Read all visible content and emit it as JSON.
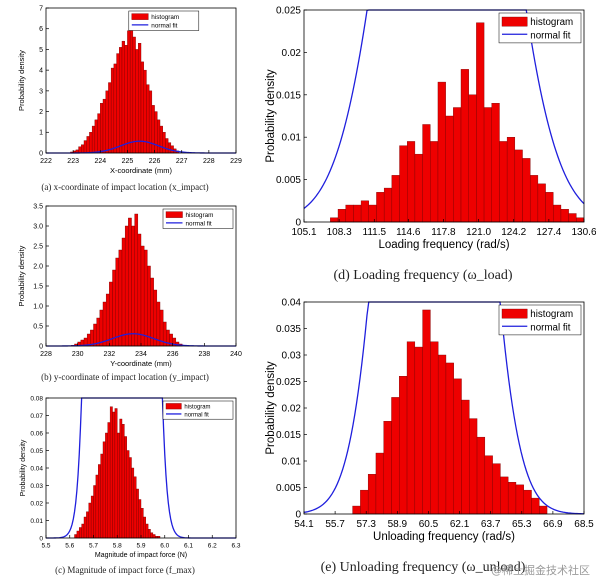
{
  "chart_data": [
    {
      "id": "a",
      "type": "bar",
      "overlay": "line",
      "xlabel": "X-coordinate (mm)",
      "ylabel": "Probability density",
      "caption": "(a) x-coordinate of impact location (x_impact)",
      "x_ticks": [
        "222",
        "223",
        "224",
        "225",
        "226",
        "227",
        "228",
        "229"
      ],
      "x_range": [
        222,
        229
      ],
      "y_ticks": [
        "0",
        "1",
        "2",
        "3",
        "4",
        "5",
        "6",
        "7"
      ],
      "y_range": [
        0,
        7
      ],
      "legend": [
        "histogram",
        "normal fit"
      ],
      "legend_position": "top-left",
      "series": [
        {
          "name": "histogram",
          "bin_start": 222.9,
          "bin_width": 0.1,
          "values": [
            0.05,
            0.1,
            0.15,
            0.3,
            0.4,
            0.6,
            0.8,
            1.0,
            1.3,
            1.6,
            1.9,
            2.4,
            2.6,
            3.0,
            3.4,
            4.1,
            4.3,
            4.8,
            5.1,
            5.4,
            5.2,
            5.9,
            6.4,
            5.6,
            5.0,
            5.3,
            4.4,
            4.0,
            3.3,
            3.0,
            2.3,
            2.0,
            1.6,
            1.3,
            1.0,
            0.7,
            0.5,
            0.35,
            0.2,
            0.1
          ]
        },
        {
          "name": "normal fit",
          "mean": 225.45,
          "sd": 0.7
        }
      ]
    },
    {
      "id": "b",
      "type": "bar",
      "overlay": "line",
      "xlabel": "Y-coordinate (mm)",
      "ylabel": "Probability density",
      "caption": "(b) y-coordinate of impact location (y_impact)",
      "x_ticks": [
        "228",
        "230",
        "232",
        "234",
        "236",
        "238",
        "240"
      ],
      "x_range": [
        228,
        240
      ],
      "y_ticks": [
        "0",
        "0.5",
        "1.0",
        "1.5",
        "2.0",
        "2.5",
        "3.0",
        "3.5"
      ],
      "y_range": [
        0,
        3.5
      ],
      "legend": [
        "histogram",
        "normal fit"
      ],
      "legend_position": "top-right",
      "series": [
        {
          "name": "histogram",
          "bin_start": 229.6,
          "bin_width": 0.2,
          "values": [
            0.02,
            0.05,
            0.1,
            0.15,
            0.2,
            0.3,
            0.4,
            0.55,
            0.7,
            0.9,
            1.1,
            1.3,
            1.6,
            1.9,
            2.2,
            2.4,
            2.7,
            3.0,
            3.2,
            3.0,
            3.3,
            2.8,
            2.5,
            2.4,
            2.0,
            1.7,
            1.4,
            1.1,
            0.9,
            0.6,
            0.4,
            0.3,
            0.2,
            0.1,
            0.05
          ]
        },
        {
          "name": "normal fit",
          "mean": 233.5,
          "sd": 1.3
        }
      ]
    },
    {
      "id": "c",
      "type": "bar",
      "overlay": "line",
      "xlabel": "Magnitude of impact force (N)",
      "ylabel": "Probability density",
      "caption": "(c) Magnitude of impact force (f_max)",
      "x_ticks": [
        "5.5",
        "5.6",
        "5.7",
        "5.8",
        "5.9",
        "6.0",
        "6.1",
        "6.2",
        "6.3"
      ],
      "x_range": [
        5.5,
        6.3
      ],
      "y_ticks": [
        "0",
        "0.01",
        "0.02",
        "0.03",
        "0.04",
        "0.05",
        "0.06",
        "0.07",
        "0.08"
      ],
      "y_range": [
        0,
        0.08
      ],
      "legend": [
        "histogram",
        "normal fit"
      ],
      "legend_position": "top-right",
      "series": [
        {
          "name": "histogram",
          "bin_start": 5.62,
          "bin_width": 0.01,
          "values": [
            0.002,
            0.004,
            0.006,
            0.008,
            0.012,
            0.015,
            0.02,
            0.024,
            0.03,
            0.036,
            0.042,
            0.048,
            0.055,
            0.06,
            0.066,
            0.075,
            0.072,
            0.074,
            0.06,
            0.068,
            0.065,
            0.058,
            0.05,
            0.046,
            0.04,
            0.035,
            0.028,
            0.022,
            0.017,
            0.012,
            0.008,
            0.005,
            0.003,
            0.002,
            0.001,
            0.001
          ]
        },
        {
          "name": "normal fit",
          "mean": 5.82,
          "sd": 0.057
        }
      ]
    },
    {
      "id": "d",
      "type": "bar",
      "overlay": "line",
      "xlabel": "Loading frequency (rad/s)",
      "ylabel": "Probability density",
      "caption": "(d) Loading frequency (ω_load)",
      "x_ticks": [
        "105.1",
        "108.3",
        "111.5",
        "114.6",
        "117.8",
        "121.0",
        "124.2",
        "127.4",
        "130.6"
      ],
      "x_range": [
        105.1,
        130.6
      ],
      "y_ticks": [
        "0",
        "0.005",
        "0.01",
        "0.015",
        "0.02",
        "0.025"
      ],
      "y_range": [
        0,
        0.025
      ],
      "legend": [
        "histogram",
        "normal fit"
      ],
      "legend_position": "top-right",
      "series": [
        {
          "name": "histogram",
          "bin_start": 107.5,
          "bin_width": 0.7,
          "values": [
            0.0005,
            0.0015,
            0.002,
            0.002,
            0.0025,
            0.002,
            0.0035,
            0.004,
            0.0055,
            0.009,
            0.0095,
            0.008,
            0.0115,
            0.0095,
            0.0165,
            0.0125,
            0.0135,
            0.018,
            0.015,
            0.0235,
            0.0135,
            0.014,
            0.0095,
            0.01,
            0.0085,
            0.0075,
            0.0055,
            0.0045,
            0.0035,
            0.002,
            0.0015,
            0.001,
            0.0005
          ]
        },
        {
          "name": "normal fit",
          "mean": 118.1,
          "sd": 4.6
        }
      ]
    },
    {
      "id": "e",
      "type": "bar",
      "overlay": "line",
      "xlabel": "Unloading frequency (rad/s)",
      "ylabel": "Probability density",
      "caption": "(e) Unloading frequency (ω_unload)",
      "x_ticks": [
        "54.1",
        "55.7",
        "57.3",
        "58.9",
        "60.5",
        "62.1",
        "63.7",
        "65.3",
        "66.9",
        "68.5"
      ],
      "x_range": [
        54.1,
        68.5
      ],
      "y_ticks": [
        "0",
        "0.005",
        "0.01",
        "0.015",
        "0.02",
        "0.025",
        "0.03",
        "0.035",
        "0.04"
      ],
      "y_range": [
        0,
        0.04
      ],
      "legend": [
        "histogram",
        "normal fit"
      ],
      "legend_position": "top-right",
      "series": [
        {
          "name": "histogram",
          "bin_start": 56.6,
          "bin_width": 0.4,
          "values": [
            0.0015,
            0.0045,
            0.0075,
            0.0115,
            0.0175,
            0.022,
            0.026,
            0.0325,
            0.0315,
            0.0385,
            0.0325,
            0.03,
            0.0285,
            0.0255,
            0.0215,
            0.018,
            0.0145,
            0.011,
            0.0095,
            0.007,
            0.006,
            0.0055,
            0.0045,
            0.003,
            0.0015
          ]
        },
        {
          "name": "normal fit",
          "mean": 60.8,
          "sd": 1.85
        }
      ]
    }
  ],
  "watermark": "@稀土掘金技术社区",
  "colors": {
    "bar": "#ee0000",
    "bar_edge": "#7a0000",
    "fit": "#1f1fdd",
    "axis": "#000000"
  }
}
